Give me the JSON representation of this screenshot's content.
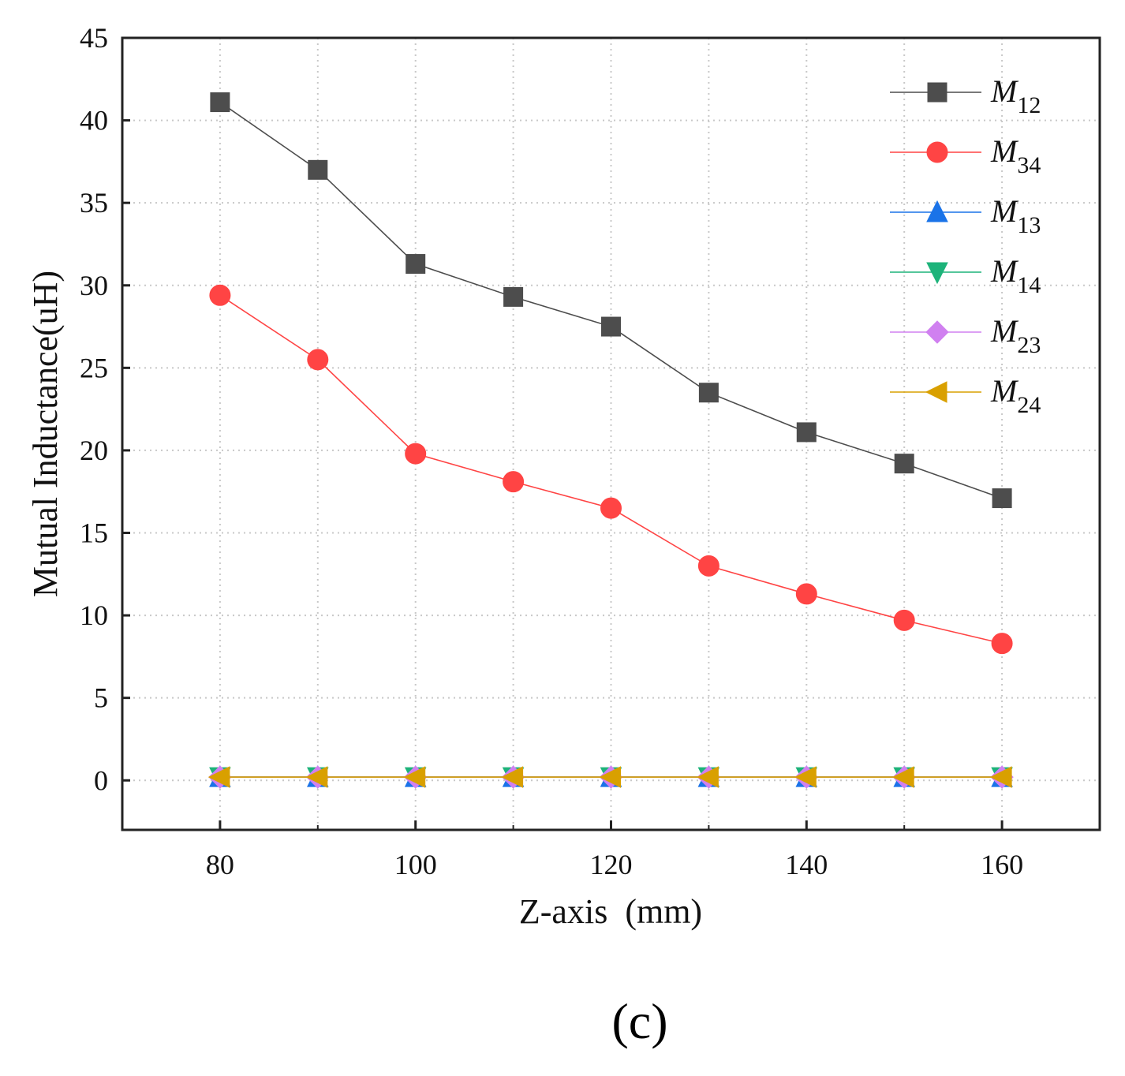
{
  "chart_data": {
    "type": "line",
    "title": "",
    "xlabel": "Z-axis  (mm)",
    "ylabel": "Mutual Inductance(uH)",
    "x": [
      80,
      90,
      100,
      110,
      120,
      130,
      140,
      150,
      160
    ],
    "xlim": [
      70,
      170
    ],
    "ylim": [
      -3,
      45
    ],
    "xticks": [
      80,
      100,
      120,
      140,
      160
    ],
    "yticks": [
      0,
      5,
      10,
      15,
      20,
      25,
      30,
      35,
      40,
      45
    ],
    "grid": true,
    "legend_position": "top-right",
    "series": [
      {
        "name": "M",
        "sub": "12",
        "color": "#4d4d4d",
        "marker": "square",
        "values": [
          41.1,
          37.0,
          31.3,
          29.3,
          27.5,
          23.5,
          21.1,
          19.2,
          17.1
        ]
      },
      {
        "name": "M",
        "sub": "34",
        "color": "#ff4444",
        "marker": "circle",
        "values": [
          29.4,
          25.5,
          19.8,
          18.1,
          16.5,
          13.0,
          11.3,
          9.7,
          8.3
        ]
      },
      {
        "name": "M",
        "sub": "13",
        "color": "#1a73e8",
        "marker": "triangle-up",
        "values": [
          0.2,
          0.2,
          0.2,
          0.2,
          0.2,
          0.2,
          0.2,
          0.2,
          0.2
        ]
      },
      {
        "name": "M",
        "sub": "14",
        "color": "#1db37a",
        "marker": "triangle-down",
        "values": [
          0.2,
          0.2,
          0.2,
          0.2,
          0.2,
          0.2,
          0.2,
          0.2,
          0.2
        ]
      },
      {
        "name": "M",
        "sub": "23",
        "color": "#d080f0",
        "marker": "diamond",
        "values": [
          0.2,
          0.2,
          0.2,
          0.2,
          0.2,
          0.2,
          0.2,
          0.2,
          0.2
        ]
      },
      {
        "name": "M",
        "sub": "24",
        "color": "#d9a000",
        "marker": "triangle-left",
        "values": [
          0.2,
          0.2,
          0.2,
          0.2,
          0.2,
          0.2,
          0.2,
          0.2,
          0.2
        ]
      }
    ]
  },
  "caption": "(c)"
}
